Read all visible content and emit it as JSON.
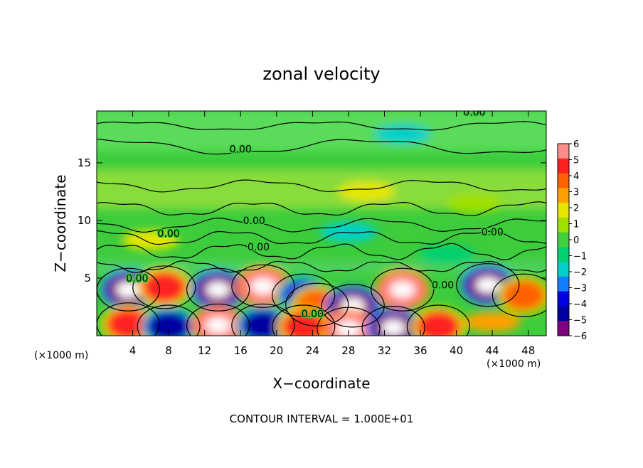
{
  "chart_data": {
    "type": "heatmap",
    "title": "zonal velocity",
    "xlabel": "X−coordinate",
    "ylabel": "Z−coordinate",
    "x_unit_left": "(×1000 m)",
    "x_unit_right": "(×1000 m)",
    "footer": "CONTOUR INTERVAL = 1.000E+01",
    "xlim": [
      0,
      50
    ],
    "ylim": [
      0,
      19.5
    ],
    "xticks": [
      4,
      8,
      12,
      16,
      20,
      24,
      28,
      32,
      36,
      40,
      44,
      48
    ],
    "yticks": [
      5,
      10,
      15
    ],
    "colorbar": {
      "min": -6,
      "max": 6,
      "ticks": [
        6,
        5,
        4,
        3,
        2,
        1,
        0,
        -1,
        -2,
        -3,
        -4,
        -5,
        -6
      ],
      "tick_labels": [
        "6",
        "5",
        "4",
        "3",
        "2",
        "1",
        "0",
        "−1",
        "−2",
        "−3",
        "−4",
        "−5",
        "−6"
      ],
      "colors": [
        "#ff8c8c",
        "#ff2020",
        "#ff6000",
        "#ffa000",
        "#e6e600",
        "#a0e000",
        "#40d040",
        "#00d070",
        "#00d0c8",
        "#1080ff",
        "#0000e0",
        "#0000a0",
        "#800080"
      ]
    },
    "contour_labels": [
      {
        "text": "0.00",
        "x": 42,
        "z": 19.4
      },
      {
        "text": "0.00",
        "x": 16,
        "z": 16.2
      },
      {
        "text": "0.00",
        "x": 17.5,
        "z": 10.0
      },
      {
        "text": "0.00",
        "x": 8,
        "z": 8.9
      },
      {
        "text": "0.00",
        "x": 18,
        "z": 7.7
      },
      {
        "text": "0.00",
        "x": 44,
        "z": 9.0
      },
      {
        "text": "0.00",
        "x": 4.5,
        "z": 5.0
      },
      {
        "text": "0.00",
        "x": 38.5,
        "z": 4.4
      },
      {
        "text": "0.00",
        "x": 24,
        "z": 1.9
      }
    ],
    "features": [
      {
        "x": 3.5,
        "z": 4.0,
        "value": -6
      },
      {
        "x": 7.5,
        "z": 4.2,
        "value": 5
      },
      {
        "x": 13.5,
        "z": 4.0,
        "value": -6
      },
      {
        "x": 18.5,
        "z": 4.3,
        "value": 6
      },
      {
        "x": 23,
        "z": 3.5,
        "value": -4
      },
      {
        "x": 24.5,
        "z": 2.7,
        "value": 4
      },
      {
        "x": 28.5,
        "z": 2.6,
        "value": -6
      },
      {
        "x": 34,
        "z": 4.0,
        "value": 6
      },
      {
        "x": 43.5,
        "z": 4.4,
        "value": -6
      },
      {
        "x": 47.5,
        "z": 3.5,
        "value": 4
      },
      {
        "x": 3.5,
        "z": 1.0,
        "value": 5
      },
      {
        "x": 8,
        "z": 0.8,
        "value": -5
      },
      {
        "x": 13.5,
        "z": 0.9,
        "value": 6
      },
      {
        "x": 18.5,
        "z": 0.9,
        "value": -5
      },
      {
        "x": 23,
        "z": 0.8,
        "value": 5
      },
      {
        "x": 28,
        "z": 0.6,
        "value": 6
      },
      {
        "x": 33,
        "z": 0.7,
        "value": -6
      },
      {
        "x": 38,
        "z": 0.8,
        "value": 5
      },
      {
        "x": 44,
        "z": 1.2,
        "value": 3
      },
      {
        "x": 34,
        "z": 17.5,
        "value": -2
      },
      {
        "x": 30,
        "z": 12.5,
        "value": 2
      },
      {
        "x": 42,
        "z": 11.5,
        "value": 1
      },
      {
        "x": 28,
        "z": 9.0,
        "value": -2
      },
      {
        "x": 6,
        "z": 8.3,
        "value": 2
      },
      {
        "x": 39,
        "z": 7.0,
        "value": -1
      }
    ]
  }
}
